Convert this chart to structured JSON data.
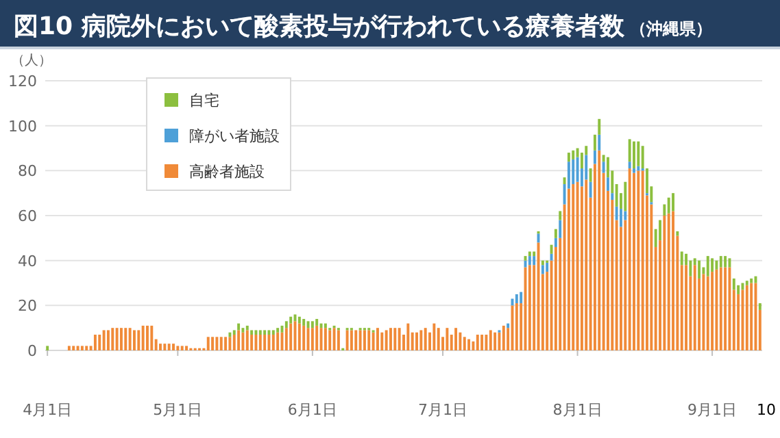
{
  "chart_data": {
    "type": "bar",
    "stacked": true,
    "title": "図10 病院外において酸素投与が行われている療養者数",
    "subtitle": "（沖縄県）",
    "ylabel": "（人）",
    "annotations": [
      "10"
    ],
    "categories": [
      "4月1日",
      null,
      null,
      null,
      null,
      null,
      null,
      null,
      null,
      null,
      null,
      null,
      null,
      null,
      null,
      null,
      null,
      null,
      null,
      null,
      null,
      null,
      null,
      null,
      null,
      null,
      null,
      null,
      null,
      null,
      "5月1日",
      null,
      null,
      null,
      null,
      null,
      null,
      null,
      null,
      null,
      null,
      null,
      null,
      null,
      null,
      null,
      null,
      null,
      null,
      null,
      null,
      null,
      null,
      null,
      null,
      null,
      null,
      null,
      null,
      null,
      null,
      "6月1日",
      null,
      null,
      null,
      null,
      null,
      null,
      null,
      null,
      null,
      null,
      null,
      null,
      null,
      null,
      null,
      null,
      null,
      null,
      null,
      null,
      null,
      null,
      null,
      null,
      null,
      null,
      null,
      null,
      null,
      "7月1日",
      null,
      null,
      null,
      null,
      null,
      null,
      null,
      null,
      null,
      null,
      null,
      null,
      null,
      null,
      null,
      null,
      null,
      null,
      null,
      null,
      null,
      null,
      null,
      null,
      null,
      null,
      null,
      null,
      null,
      null,
      "8月1日",
      null,
      null,
      null,
      null,
      null,
      null,
      null,
      null,
      null,
      null,
      null,
      null,
      null,
      null,
      null,
      null,
      null,
      null,
      null,
      null,
      null,
      null,
      null,
      null,
      null,
      null,
      null,
      null,
      null,
      null,
      "9月1日",
      null,
      null,
      null,
      null,
      null,
      null,
      null,
      null,
      null,
      null,
      null
    ],
    "series": [
      {
        "name": "高齢者施設",
        "color": "#f08a38",
        "values": [
          0,
          0,
          0,
          0,
          0,
          2,
          2,
          2,
          2,
          2,
          2,
          7,
          7,
          9,
          9,
          10,
          10,
          10,
          10,
          10,
          9,
          9,
          11,
          11,
          11,
          5,
          3,
          3,
          3,
          3,
          2,
          2,
          2,
          1,
          1,
          1,
          1,
          6,
          6,
          6,
          6,
          6,
          6,
          7,
          9,
          8,
          9,
          7,
          7,
          7,
          7,
          7,
          7,
          8,
          8,
          10,
          12,
          13,
          12,
          11,
          10,
          10,
          11,
          10,
          10,
          9,
          10,
          9,
          0,
          9,
          9,
          9,
          9,
          9,
          9,
          8,
          10,
          8,
          9,
          10,
          10,
          10,
          7,
          12,
          8,
          8,
          9,
          10,
          8,
          12,
          10,
          6,
          10,
          7,
          10,
          8,
          6,
          5,
          4,
          7,
          7,
          7,
          9,
          8,
          8,
          11,
          10,
          20,
          21,
          21,
          37,
          38,
          38,
          48,
          34,
          35,
          40,
          46,
          50,
          65,
          72,
          74,
          75,
          73,
          76,
          68,
          83,
          89,
          79,
          71,
          67,
          58,
          55,
          58,
          81,
          79,
          80,
          80,
          69,
          65,
          46,
          49,
          60,
          61,
          62,
          51,
          38,
          38,
          33,
          38,
          32,
          34,
          33,
          35,
          36,
          37,
          37,
          37,
          27,
          25,
          27,
          29,
          30,
          30,
          18
        ]
      },
      {
        "name": "障がい者施設",
        "color": "#4ea0d8",
        "values": [
          0,
          0,
          0,
          0,
          0,
          0,
          0,
          0,
          0,
          0,
          0,
          0,
          0,
          0,
          0,
          0,
          0,
          0,
          0,
          0,
          0,
          0,
          0,
          0,
          0,
          0,
          0,
          0,
          0,
          0,
          0,
          0,
          0,
          0,
          0,
          0,
          0,
          0,
          0,
          0,
          0,
          0,
          0,
          0,
          0,
          0,
          0,
          0,
          0,
          0,
          0,
          0,
          0,
          0,
          0,
          0,
          0,
          0,
          0,
          0,
          0,
          0,
          0,
          0,
          0,
          0,
          0,
          0,
          0,
          0,
          0,
          0,
          0,
          0,
          0,
          0,
          0,
          0,
          0,
          0,
          0,
          0,
          0,
          0,
          0,
          0,
          0,
          0,
          0,
          0,
          0,
          0,
          0,
          0,
          0,
          0,
          0,
          0,
          0,
          0,
          0,
          0,
          0,
          0,
          1,
          0,
          2,
          3,
          4,
          5,
          3,
          4,
          4,
          4,
          4,
          4,
          3,
          4,
          8,
          9,
          12,
          11,
          11,
          8,
          11,
          7,
          6,
          7,
          5,
          6,
          3,
          6,
          8,
          4,
          3,
          2,
          2,
          1,
          1,
          1,
          0,
          0,
          0,
          0,
          0,
          0,
          0,
          0,
          0,
          0,
          0,
          0,
          0,
          0,
          0,
          0,
          0,
          0,
          0,
          0,
          0,
          0,
          0,
          0,
          0
        ]
      },
      {
        "name": "自宅",
        "color": "#8cbf3f",
        "values": [
          2,
          0,
          0,
          0,
          0,
          0,
          0,
          0,
          0,
          0,
          0,
          0,
          0,
          0,
          0,
          0,
          0,
          0,
          0,
          0,
          0,
          0,
          0,
          0,
          0,
          0,
          0,
          0,
          0,
          0,
          0,
          0,
          0,
          0,
          0,
          0,
          0,
          0,
          0,
          0,
          0,
          0,
          2,
          2,
          3,
          2,
          2,
          2,
          2,
          2,
          2,
          2,
          2,
          2,
          3,
          3,
          3,
          3,
          3,
          3,
          3,
          3,
          3,
          2,
          2,
          1,
          1,
          1,
          1,
          1,
          1,
          0,
          1,
          1,
          1,
          1,
          0,
          0,
          0,
          0,
          0,
          0,
          0,
          0,
          0,
          0,
          0,
          0,
          0,
          0,
          0,
          0,
          0,
          0,
          0,
          0,
          0,
          0,
          0,
          0,
          0,
          0,
          0,
          0,
          0,
          0,
          0,
          0,
          0,
          0,
          2,
          2,
          2,
          1,
          2,
          1,
          4,
          4,
          4,
          3,
          4,
          4,
          4,
          7,
          4,
          6,
          7,
          7,
          3,
          9,
          10,
          10,
          7,
          13,
          10,
          12,
          11,
          10,
          11,
          7,
          8,
          9,
          5,
          7,
          8,
          2,
          6,
          5,
          7,
          3,
          8,
          3,
          9,
          6,
          4,
          5,
          5,
          4,
          5,
          4,
          3,
          2,
          2,
          3,
          3
        ]
      }
    ],
    "ylim": [
      0,
      120
    ],
    "yticks": [
      0,
      20,
      40,
      60,
      80,
      100,
      120
    ],
    "grid": "y",
    "legend": "top left"
  }
}
